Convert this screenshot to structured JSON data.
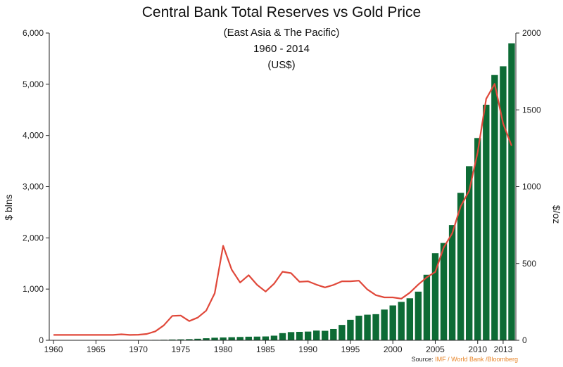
{
  "chart_data": {
    "type": "bar+line",
    "title": "Central Bank Total Reserves vs Gold Price",
    "subtitle_lines": [
      "(East Asia & The Pacific)",
      "1960 - 2014",
      "(US$)"
    ],
    "ylabel_left": "$ blns",
    "ylabel_right": "$/oz",
    "ylim_left": [
      0,
      6000
    ],
    "ylim_right": [
      0,
      2000
    ],
    "yticks_left": [
      "0",
      "1,000",
      "2,000",
      "3,000",
      "4,000",
      "5,000",
      "6,000"
    ],
    "yticks_right": [
      "0",
      "500",
      "1000",
      "1500",
      "2000"
    ],
    "xticks": [
      "1960",
      "1965",
      "1970",
      "1975",
      "1980",
      "1985",
      "1990",
      "1995",
      "2000",
      "2005",
      "2010",
      "2013"
    ],
    "years": [
      1960,
      1961,
      1962,
      1963,
      1964,
      1965,
      1966,
      1967,
      1968,
      1969,
      1970,
      1971,
      1972,
      1973,
      1974,
      1975,
      1976,
      1977,
      1978,
      1979,
      1980,
      1981,
      1982,
      1983,
      1984,
      1985,
      1986,
      1987,
      1988,
      1989,
      1990,
      1991,
      1992,
      1993,
      1994,
      1995,
      1996,
      1997,
      1998,
      1999,
      2000,
      2001,
      2002,
      2003,
      2004,
      2005,
      2006,
      2007,
      2008,
      2009,
      2010,
      2011,
      2012,
      2013,
      2014
    ],
    "series": [
      {
        "name": "Central Bank Total Reserves",
        "axis": "left",
        "mark": "bar",
        "color": "#0d6b35",
        "values": [
          2,
          2,
          2,
          2,
          2,
          2,
          3,
          3,
          3,
          3,
          4,
          5,
          8,
          10,
          15,
          18,
          22,
          30,
          40,
          50,
          55,
          60,
          65,
          70,
          72,
          75,
          90,
          140,
          160,
          165,
          170,
          190,
          185,
          220,
          300,
          400,
          480,
          500,
          510,
          600,
          680,
          750,
          820,
          950,
          1280,
          1700,
          1900,
          2250,
          2880,
          3400,
          3950,
          4600,
          5180,
          5350,
          5800
        ]
      },
      {
        "name": "Gold Price",
        "axis": "right",
        "mark": "line",
        "color": "#e0483a",
        "values": [
          35,
          35,
          35,
          35,
          35,
          35,
          35,
          35,
          39,
          35,
          36,
          41,
          58,
          97,
          159,
          161,
          125,
          148,
          193,
          306,
          615,
          460,
          376,
          424,
          361,
          317,
          368,
          446,
          437,
          381,
          384,
          362,
          344,
          360,
          384,
          384,
          388,
          331,
          294,
          279,
          279,
          271,
          310,
          363,
          410,
          445,
          604,
          696,
          872,
          973,
          1225,
          1571,
          1669,
          1411,
          1266
        ]
      }
    ]
  },
  "source": {
    "label": "Source: ",
    "value": "IMF / World Bank /Bloomberg"
  }
}
